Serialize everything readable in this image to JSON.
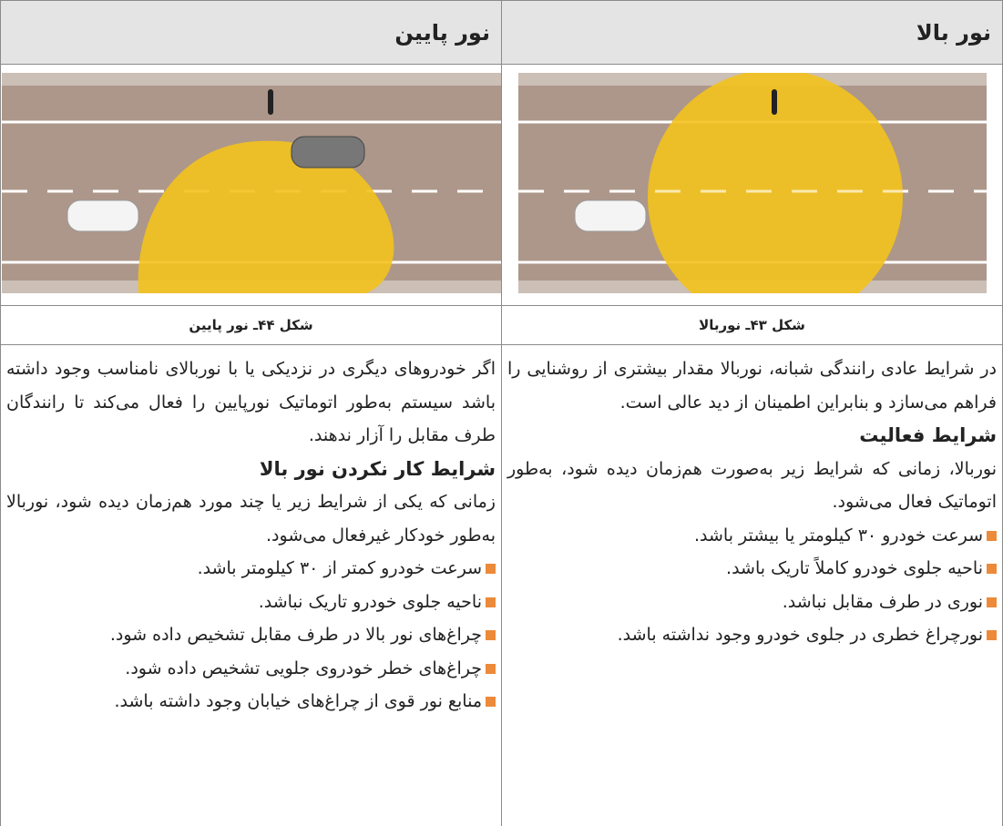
{
  "table": {
    "headers": [
      "نور بالا",
      "نور پایین"
    ],
    "captions": [
      "شکل ۴۳ـ نوربالا",
      "شکل ۴۴ـ نور پایین"
    ],
    "cells": [
      {
        "intro": "در شرایط عادی رانندگی شبانه، نوربالا مقدار بیشتری از روشنایی را فراهم می‌سازد و بنابراین اطمینان از دید عالی است.",
        "heading": "شرایط فعالیت",
        "text": "نوربالا، زمانی که شرایط زیر به‌صورت هم‌زمان دیده شود، به‌طور اتوماتیک فعال می‌شود.",
        "bullets": [
          "سرعت خودرو ۳۰ کیلومتر یا بیشتر باشد.",
          "ناحیه جلوی خودرو کاملاً تاریک باشد.",
          "نوری در طرف مقابل نباشد.",
          "نورچراغ خطری در جلوی خودرو وجود نداشته باشد."
        ]
      },
      {
        "intro": "اگر خودروهای دیگری در نزدیکی یا با نوربالای نامناسب وجود داشته باشد سیستم به‌طور اتوماتیک نورپایین را فعال می‌کند تا رانندگان طرف مقابل را آزار ندهند.",
        "heading": "شرایط کار نکردن نور بالا",
        "text": "زمانی که یکی از شرایط زیر یا چند مورد هم‌زمان دیده شود، نوربالا به‌طور خودکار غیرفعال می‌شود.",
        "bullets": [
          "سرعت خودرو کمتر از ۳۰ کیلومتر باشد.",
          "ناحیه جلوی خودرو تاریک نباشد.",
          "چراغ‌های نور بالا در طرف مقابل تشخیص داده شود.",
          "چراغ‌های خطر خودروی جلویی تشخیص داده شود.",
          "منابع نور قوی از چراغ‌های خیابان وجود داشته باشد."
        ]
      }
    ]
  }
}
